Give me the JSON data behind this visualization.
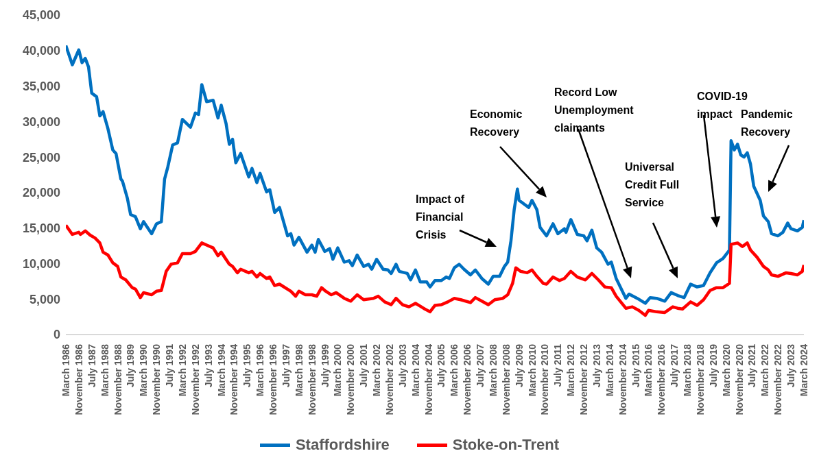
{
  "chart_data": {
    "type": "line",
    "ylim": [
      0,
      45000
    ],
    "yticks": [
      0,
      {
        "value": 5000,
        "label": "5,000"
      },
      {
        "value": 10000,
        "label": "10,000"
      },
      {
        "value": 15000,
        "label": "15,000"
      },
      {
        "value": 20000,
        "label": "20,000"
      },
      {
        "value": 25000,
        "label": "25,000"
      },
      {
        "value": 30000,
        "label": "30,000"
      },
      {
        "value": 35000,
        "label": "35,000"
      },
      {
        "value": 40000,
        "label": "40,000"
      },
      {
        "value": 45000,
        "label": "45,000"
      }
    ],
    "xlim": [
      "1986-03",
      "2024-03"
    ],
    "xticks": [
      {
        "value": "1986-03",
        "label": "March 1986"
      },
      {
        "value": "1986-11",
        "label": "November 1986"
      },
      {
        "value": "1987-07",
        "label": "July 1987"
      },
      {
        "value": "1988-03",
        "label": "March 1988"
      },
      {
        "value": "1988-11",
        "label": "November 1988"
      },
      {
        "value": "1989-07",
        "label": "July 1989"
      },
      {
        "value": "1990-03",
        "label": "March 1990"
      },
      {
        "value": "1990-11",
        "label": "November 1990"
      },
      {
        "value": "1991-07",
        "label": "July 1991"
      },
      {
        "value": "1992-03",
        "label": "March 1992"
      },
      {
        "value": "1992-11",
        "label": "November 1992"
      },
      {
        "value": "1993-07",
        "label": "July 1993"
      },
      {
        "value": "1994-03",
        "label": "March 1994"
      },
      {
        "value": "1994-11",
        "label": "November 1994"
      },
      {
        "value": "1995-07",
        "label": "July 1995"
      },
      {
        "value": "1996-03",
        "label": "March 1996"
      },
      {
        "value": "1996-11",
        "label": "November 1996"
      },
      {
        "value": "1997-07",
        "label": "July 1997"
      },
      {
        "value": "1998-03",
        "label": "March 1998"
      },
      {
        "value": "1998-11",
        "label": "November 1998"
      },
      {
        "value": "1999-07",
        "label": "July 1999"
      },
      {
        "value": "2000-03",
        "label": "March 2000"
      },
      {
        "value": "2000-11",
        "label": "November 2000"
      },
      {
        "value": "2001-07",
        "label": "July 2001"
      },
      {
        "value": "2002-03",
        "label": "March 2002"
      },
      {
        "value": "2002-11",
        "label": "November 2002"
      },
      {
        "value": "2003-07",
        "label": "July 2003"
      },
      {
        "value": "2004-03",
        "label": "March 2004"
      },
      {
        "value": "2004-11",
        "label": "November 2004"
      },
      {
        "value": "2005-07",
        "label": "July 2005"
      },
      {
        "value": "2006-03",
        "label": "March 2006"
      },
      {
        "value": "2006-11",
        "label": "November 2006"
      },
      {
        "value": "2007-07",
        "label": "July 2007"
      },
      {
        "value": "2008-03",
        "label": "March 2008"
      },
      {
        "value": "2008-11",
        "label": "November 2008"
      },
      {
        "value": "2009-07",
        "label": "July 2009"
      },
      {
        "value": "2010-03",
        "label": "March 2010"
      },
      {
        "value": "2010-11",
        "label": "November 2010"
      },
      {
        "value": "2011-07",
        "label": "July 2011"
      },
      {
        "value": "2012-03",
        "label": "March 2012"
      },
      {
        "value": "2012-11",
        "label": "November 2012"
      },
      {
        "value": "2013-07",
        "label": "July 2013"
      },
      {
        "value": "2014-03",
        "label": "March 2014"
      },
      {
        "value": "2014-11",
        "label": "November 2014"
      },
      {
        "value": "2015-07",
        "label": "July 2015"
      },
      {
        "value": "2016-03",
        "label": "March 2016"
      },
      {
        "value": "2016-11",
        "label": "November 2016"
      },
      {
        "value": "2017-07",
        "label": "July 2017"
      },
      {
        "value": "2018-03",
        "label": "March 2018"
      },
      {
        "value": "2018-11",
        "label": "November 2018"
      },
      {
        "value": "2019-07",
        "label": "July 2019"
      },
      {
        "value": "2020-03",
        "label": "March 2020"
      },
      {
        "value": "2020-11",
        "label": "November 2020"
      },
      {
        "value": "2021-07",
        "label": "July 2021"
      },
      {
        "value": "2022-03",
        "label": "March 2022"
      },
      {
        "value": "2022-11",
        "label": "November 2022"
      },
      {
        "value": "2023-07",
        "label": "July 2023"
      },
      {
        "value": "2024-03",
        "label": "March 2024"
      }
    ],
    "legend": "bottom",
    "series": [
      {
        "name": "Staffordshire",
        "color": "#0070c0",
        "x": [
          "1986-03",
          "1986-07",
          "1986-11",
          "1987-01",
          "1987-03",
          "1987-05",
          "1987-07",
          "1987-10",
          "1987-12",
          "1988-02",
          "1988-05",
          "1988-08",
          "1988-10",
          "1989-01",
          "1989-02",
          "1989-05",
          "1989-07",
          "1989-10",
          "1990-01",
          "1990-03",
          "1990-08",
          "1990-11",
          "1991-02",
          "1991-04",
          "1991-06",
          "1991-09",
          "1991-12",
          "1992-03",
          "1992-08",
          "1992-11",
          "1993-01",
          "1993-03",
          "1993-06",
          "1993-10",
          "1994-01",
          "1994-03",
          "1994-06",
          "1994-08",
          "1994-10",
          "1994-12",
          "1995-03",
          "1995-08",
          "1995-10",
          "1996-01",
          "1996-03",
          "1996-07",
          "1996-09",
          "1996-12",
          "1997-03",
          "1997-08",
          "1997-10",
          "1997-12",
          "1998-03",
          "1998-08",
          "1998-11",
          "1999-01",
          "1999-03",
          "1999-07",
          "1999-10",
          "1999-12",
          "2000-03",
          "2000-07",
          "2000-10",
          "2000-12",
          "2001-03",
          "2001-07",
          "2001-10",
          "2001-12",
          "2002-03",
          "2002-07",
          "2002-10",
          "2002-12",
          "2003-03",
          "2003-05",
          "2003-10",
          "2003-12",
          "2004-03",
          "2004-06",
          "2004-10",
          "2004-12",
          "2005-03",
          "2005-07",
          "2005-10",
          "2005-12",
          "2006-03",
          "2006-06",
          "2006-09",
          "2007-01",
          "2007-04",
          "2007-08",
          "2007-12",
          "2008-03",
          "2008-07",
          "2008-10",
          "2008-12",
          "2009-02",
          "2009-04",
          "2009-06",
          "2009-07",
          "2009-10",
          "2010-01",
          "2010-03",
          "2010-06",
          "2010-08",
          "2010-12",
          "2011-04",
          "2011-07",
          "2011-11",
          "2011-12",
          "2012-03",
          "2012-07",
          "2012-11",
          "2013-01",
          "2013-04",
          "2013-07",
          "2013-10",
          "2014-02",
          "2014-04",
          "2014-07",
          "2015-01",
          "2015-03",
          "2015-08",
          "2016-01",
          "2016-04",
          "2016-08",
          "2017-01",
          "2017-05",
          "2017-09",
          "2018-01",
          "2018-05",
          "2018-09",
          "2019-01",
          "2019-05",
          "2019-09",
          "2020-01",
          "2020-05",
          "2020-06",
          "2020-08",
          "2020-10",
          "2020-12",
          "2021-02",
          "2021-04",
          "2021-06",
          "2021-08",
          "2021-12",
          "2022-02",
          "2022-05",
          "2022-07",
          "2022-11",
          "2023-02",
          "2023-05",
          "2023-07",
          "2023-11",
          "2024-02",
          "2024-03"
        ],
        "values": [
          40700,
          38000,
          40100,
          38300,
          38900,
          37700,
          34000,
          33500,
          30800,
          31400,
          29000,
          26000,
          25500,
          21900,
          21600,
          19200,
          16900,
          16600,
          14900,
          15900,
          14200,
          15600,
          15900,
          21900,
          23600,
          26700,
          27000,
          30300,
          29200,
          31200,
          31000,
          35200,
          32800,
          33000,
          30500,
          32300,
          29700,
          26800,
          27500,
          24200,
          25500,
          22200,
          23400,
          21400,
          22700,
          20100,
          20400,
          17200,
          17900,
          13900,
          14200,
          12600,
          13700,
          11600,
          12600,
          11600,
          13400,
          11700,
          12100,
          10600,
          12200,
          10200,
          10400,
          9700,
          11200,
          9600,
          9900,
          9200,
          10600,
          9200,
          9100,
          8600,
          9900,
          8900,
          8600,
          7700,
          9100,
          7400,
          7400,
          6700,
          7600,
          7600,
          8100,
          7900,
          9400,
          9900,
          9200,
          8400,
          9100,
          7900,
          7100,
          8200,
          8200,
          9600,
          10200,
          13200,
          17600,
          20500,
          18900,
          18400,
          17900,
          18900,
          17600,
          15100,
          13900,
          15600,
          14200,
          14900,
          14400,
          16200,
          14100,
          13900,
          13200,
          14700,
          12200,
          11600,
          9900,
          10200,
          7900,
          5100,
          5700,
          5100,
          4400,
          5200,
          5100,
          4700,
          5900,
          5500,
          5200,
          7100,
          6700,
          6900,
          8700,
          10100,
          10700,
          11900,
          27300,
          26000,
          26800,
          25300,
          25000,
          25600,
          24000,
          20900,
          18900,
          16700,
          15900,
          14200,
          13900,
          14400,
          15700,
          14900,
          14600,
          15100,
          16100
        ]
      },
      {
        "name": "Stoke-on-Trent",
        "color": "#ff0000",
        "x": [
          "1986-03",
          "1986-07",
          "1986-11",
          "1986-12",
          "1987-03",
          "1987-06",
          "1987-09",
          "1987-12",
          "1988-02",
          "1988-05",
          "1988-08",
          "1988-11",
          "1989-01",
          "1989-04",
          "1989-08",
          "1989-10",
          "1990-01",
          "1990-03",
          "1990-08",
          "1990-11",
          "1991-02",
          "1991-05",
          "1991-08",
          "1991-12",
          "1992-03",
          "1992-08",
          "1992-11",
          "1993-03",
          "1993-06",
          "1993-10",
          "1994-01",
          "1994-03",
          "1994-08",
          "1994-10",
          "1995-01",
          "1995-03",
          "1995-08",
          "1995-10",
          "1996-01",
          "1996-03",
          "1996-07",
          "1996-09",
          "1996-12",
          "1997-03",
          "1997-10",
          "1998-01",
          "1998-03",
          "1998-07",
          "1998-11",
          "1999-02",
          "1999-05",
          "1999-07",
          "1999-11",
          "2000-02",
          "2000-07",
          "2000-11",
          "2001-03",
          "2001-07",
          "2002-01",
          "2002-04",
          "2002-08",
          "2002-12",
          "2003-03",
          "2003-07",
          "2003-11",
          "2004-03",
          "2004-08",
          "2004-12",
          "2005-03",
          "2005-07",
          "2005-11",
          "2006-03",
          "2006-07",
          "2007-01",
          "2007-04",
          "2007-08",
          "2007-12",
          "2008-04",
          "2008-09",
          "2008-12",
          "2009-03",
          "2009-05",
          "2009-08",
          "2009-12",
          "2010-03",
          "2010-06",
          "2010-10",
          "2010-12",
          "2011-04",
          "2011-08",
          "2011-11",
          "2012-03",
          "2012-07",
          "2012-12",
          "2013-04",
          "2013-08",
          "2013-12",
          "2014-04",
          "2014-07",
          "2015-01",
          "2015-05",
          "2015-09",
          "2016-01",
          "2016-03",
          "2016-08",
          "2017-01",
          "2017-06",
          "2017-09",
          "2017-12",
          "2018-05",
          "2018-09",
          "2019-01",
          "2019-05",
          "2019-09",
          "2020-01",
          "2020-05",
          "2020-06",
          "2020-10",
          "2021-01",
          "2021-04",
          "2021-06",
          "2021-10",
          "2022-02",
          "2022-05",
          "2022-07",
          "2022-11",
          "2023-04",
          "2023-07",
          "2023-11",
          "2024-02",
          "2024-03"
        ],
        "values": [
          15400,
          14100,
          14400,
          14100,
          14600,
          14000,
          13600,
          12900,
          11600,
          11200,
          10100,
          9600,
          8100,
          7700,
          6600,
          6400,
          5200,
          5900,
          5600,
          6100,
          6200,
          8900,
          9900,
          10100,
          11400,
          11400,
          11700,
          12900,
          12600,
          12200,
          11100,
          11600,
          9900,
          9600,
          8700,
          9200,
          8700,
          8900,
          8100,
          8600,
          7900,
          8100,
          6900,
          7100,
          6100,
          5400,
          6100,
          5600,
          5600,
          5400,
          6600,
          6200,
          5600,
          5900,
          5100,
          4700,
          5600,
          4900,
          5100,
          5400,
          4600,
          4200,
          5100,
          4200,
          3900,
          4400,
          3700,
          3200,
          4100,
          4200,
          4600,
          5100,
          4900,
          4500,
          5200,
          4700,
          4200,
          4900,
          5100,
          5600,
          7200,
          9400,
          8900,
          8700,
          9100,
          8200,
          7200,
          7100,
          8100,
          7600,
          7900,
          8900,
          8100,
          7700,
          8600,
          7700,
          6700,
          6600,
          5400,
          3700,
          3900,
          3400,
          2700,
          3400,
          3200,
          3100,
          3900,
          3700,
          3600,
          4600,
          4100,
          4900,
          6200,
          6600,
          6600,
          7200,
          12700,
          12900,
          12400,
          12900,
          11900,
          10900,
          9600,
          9100,
          8400,
          8200,
          8700,
          8600,
          8400,
          8900,
          9800
        ]
      }
    ],
    "annotations": [
      "Impact of\nFinancial\nCrisis",
      "Economic\nRecovery",
      "Record Low\nUnemployment\nclaimants",
      "Universal\nCredit Full\nService",
      "COVID-19\nimpact",
      "Pandemic\nRecovery"
    ]
  }
}
